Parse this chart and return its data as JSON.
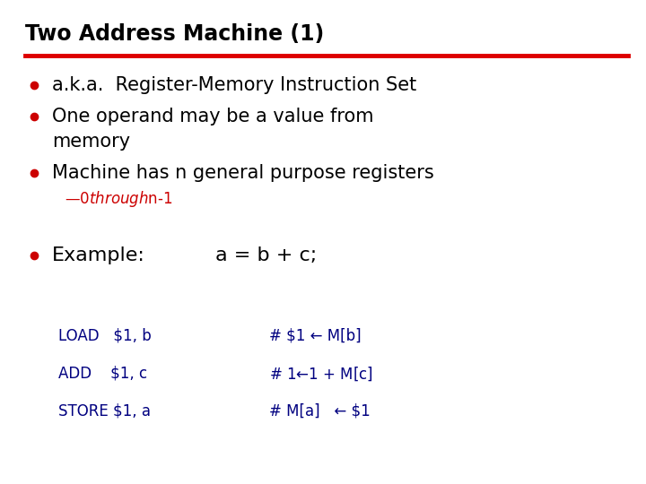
{
  "title": "Two Address Machine (1)",
  "title_color": "#000000",
  "title_fontsize": 17,
  "line_color": "#dd0000",
  "background_color": "#ffffff",
  "bullet_color": "#cc0000",
  "bullet_text_color": "#000000",
  "sub_bullet_color": "#cc0000",
  "code_color": "#000080",
  "sub_bullet": "—$0 through $n-1",
  "example_label": "Example:",
  "example_expr": "a = b + c;",
  "code_lines": [
    [
      "LOAD   $1, b",
      "# $1 ← M[b]"
    ],
    [
      "ADD    $1, c",
      "# $1 ← $1 + M[c]"
    ],
    [
      "STORE $1, a",
      "# M[a]   ← $1"
    ]
  ],
  "bullet_fontsize": 15,
  "sub_bullet_fontsize": 12,
  "example_fontsize": 16,
  "code_fontsize": 12,
  "bullet1": "a.k.a.  Register-Memory Instruction Set",
  "bullet2a": "One operand may be a value from",
  "bullet2b": "memory",
  "bullet3": "Machine has n general purpose registers"
}
